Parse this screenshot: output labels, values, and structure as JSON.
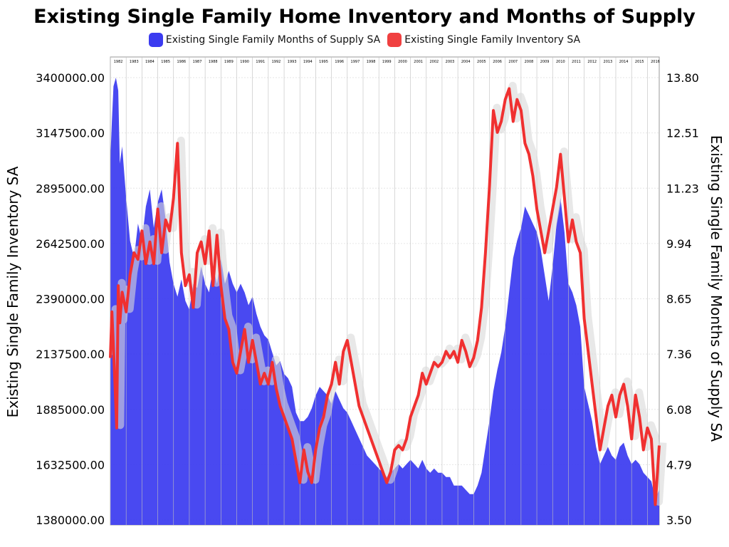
{
  "chart_data": {
    "type": "area+line",
    "title": "Existing Single Family Home Inventory and Months of Supply",
    "ylabel_left": "Existing Single Family Inventory SA",
    "ylabel_right": "Existing Single Family Months of Supply SA",
    "legend_position": "top-center",
    "grid": true,
    "y_left_ticks": [
      "3400000.00",
      "3147500.00",
      "2895000.00",
      "2642500.00",
      "2390000.00",
      "2137500.00",
      "1885000.00",
      "1632500.00",
      "1380000.00"
    ],
    "y_right_ticks": [
      "13.80",
      "12.51",
      "11.23",
      "9.94",
      "8.65",
      "7.36",
      "6.08",
      "4.79",
      "3.50"
    ],
    "y_left_range": [
      1380000,
      3400000
    ],
    "y_right_range": [
      3.5,
      13.8
    ],
    "x_range": [
      1982.0,
      2016.75
    ],
    "year_labels": [
      "1982",
      "1983",
      "1984",
      "1985",
      "1986",
      "1987",
      "1988",
      "1989",
      "1990",
      "1991",
      "1992",
      "1993",
      "1994",
      "1995",
      "1996",
      "1997",
      "1998",
      "1999",
      "2000",
      "2001",
      "2002",
      "2003",
      "2004",
      "2005",
      "2006",
      "2007",
      "2008",
      "2009",
      "2010",
      "2011",
      "2012",
      "2013",
      "2014",
      "2015",
      "2016"
    ],
    "series": [
      {
        "name": "Existing Single Family Months of Supply SA",
        "axis": "right",
        "render": "area",
        "color": "#3b3bf0",
        "points": [
          [
            1982.0,
            11.9
          ],
          [
            1982.1,
            12.8
          ],
          [
            1982.2,
            13.6
          ],
          [
            1982.35,
            13.8
          ],
          [
            1982.5,
            13.5
          ],
          [
            1982.6,
            11.8
          ],
          [
            1982.75,
            12.2
          ],
          [
            1983.0,
            11.0
          ],
          [
            1983.25,
            10.0
          ],
          [
            1983.5,
            9.6
          ],
          [
            1983.75,
            10.4
          ],
          [
            1984.0,
            10.0
          ],
          [
            1984.25,
            10.8
          ],
          [
            1984.5,
            11.2
          ],
          [
            1984.75,
            10.3
          ],
          [
            1985.0,
            10.9
          ],
          [
            1985.25,
            11.2
          ],
          [
            1985.5,
            10.5
          ],
          [
            1985.75,
            9.5
          ],
          [
            1986.0,
            9.0
          ],
          [
            1986.25,
            8.7
          ],
          [
            1986.5,
            9.1
          ],
          [
            1986.75,
            8.6
          ],
          [
            1987.0,
            8.4
          ],
          [
            1987.25,
            9.0
          ],
          [
            1987.5,
            8.9
          ],
          [
            1987.75,
            9.4
          ],
          [
            1988.0,
            9.0
          ],
          [
            1988.25,
            8.8
          ],
          [
            1988.5,
            9.4
          ],
          [
            1988.75,
            9.0
          ],
          [
            1989.0,
            9.6
          ],
          [
            1989.25,
            9.0
          ],
          [
            1989.5,
            9.3
          ],
          [
            1989.75,
            9.0
          ],
          [
            1990.0,
            8.8
          ],
          [
            1990.25,
            9.0
          ],
          [
            1990.5,
            8.8
          ],
          [
            1990.75,
            8.5
          ],
          [
            1991.0,
            8.7
          ],
          [
            1991.25,
            8.3
          ],
          [
            1991.5,
            8.0
          ],
          [
            1991.75,
            7.8
          ],
          [
            1992.0,
            7.7
          ],
          [
            1992.25,
            7.4
          ],
          [
            1992.5,
            7.1
          ],
          [
            1992.75,
            7.2
          ],
          [
            1993.0,
            6.9
          ],
          [
            1993.25,
            6.8
          ],
          [
            1993.5,
            6.6
          ],
          [
            1993.75,
            6.0
          ],
          [
            1994.0,
            5.8
          ],
          [
            1994.25,
            5.8
          ],
          [
            1994.5,
            5.9
          ],
          [
            1994.75,
            6.1
          ],
          [
            1995.0,
            6.4
          ],
          [
            1995.25,
            6.6
          ],
          [
            1995.5,
            6.5
          ],
          [
            1995.75,
            6.4
          ],
          [
            1996.0,
            6.2
          ],
          [
            1996.25,
            6.5
          ],
          [
            1996.5,
            6.3
          ],
          [
            1996.75,
            6.1
          ],
          [
            1997.0,
            6.0
          ],
          [
            1997.25,
            5.8
          ],
          [
            1997.5,
            5.6
          ],
          [
            1997.75,
            5.4
          ],
          [
            1998.0,
            5.2
          ],
          [
            1998.25,
            5.0
          ],
          [
            1998.5,
            4.9
          ],
          [
            1998.75,
            4.8
          ],
          [
            1999.0,
            4.7
          ],
          [
            1999.25,
            4.6
          ],
          [
            1999.5,
            4.5
          ],
          [
            1999.75,
            4.6
          ],
          [
            2000.0,
            4.7
          ],
          [
            2000.25,
            4.8
          ],
          [
            2000.5,
            4.7
          ],
          [
            2000.75,
            4.8
          ],
          [
            2001.0,
            4.9
          ],
          [
            2001.25,
            4.8
          ],
          [
            2001.5,
            4.7
          ],
          [
            2001.75,
            4.9
          ],
          [
            2002.0,
            4.7
          ],
          [
            2002.25,
            4.6
          ],
          [
            2002.5,
            4.7
          ],
          [
            2002.75,
            4.6
          ],
          [
            2003.0,
            4.6
          ],
          [
            2003.25,
            4.5
          ],
          [
            2003.5,
            4.5
          ],
          [
            2003.75,
            4.3
          ],
          [
            2004.0,
            4.3
          ],
          [
            2004.25,
            4.3
          ],
          [
            2004.5,
            4.2
          ],
          [
            2004.75,
            4.1
          ],
          [
            2005.0,
            4.1
          ],
          [
            2005.25,
            4.3
          ],
          [
            2005.5,
            4.6
          ],
          [
            2005.75,
            5.2
          ],
          [
            2006.0,
            5.8
          ],
          [
            2006.25,
            6.5
          ],
          [
            2006.5,
            7.0
          ],
          [
            2006.75,
            7.4
          ],
          [
            2007.0,
            8.0
          ],
          [
            2007.25,
            8.8
          ],
          [
            2007.5,
            9.6
          ],
          [
            2007.75,
            10.0
          ],
          [
            2008.0,
            10.3
          ],
          [
            2008.25,
            10.8
          ],
          [
            2008.5,
            10.6
          ],
          [
            2008.75,
            10.4
          ],
          [
            2009.0,
            10.2
          ],
          [
            2009.25,
            9.8
          ],
          [
            2009.5,
            9.2
          ],
          [
            2009.75,
            8.6
          ],
          [
            2010.0,
            9.4
          ],
          [
            2010.25,
            10.4
          ],
          [
            2010.5,
            11.0
          ],
          [
            2010.75,
            10.2
          ],
          [
            2011.0,
            9.0
          ],
          [
            2011.25,
            8.8
          ],
          [
            2011.5,
            8.5
          ],
          [
            2011.75,
            8.0
          ],
          [
            2012.0,
            6.6
          ],
          [
            2012.25,
            6.2
          ],
          [
            2012.5,
            5.8
          ],
          [
            2012.75,
            5.2
          ],
          [
            2013.0,
            4.8
          ],
          [
            2013.25,
            5.0
          ],
          [
            2013.5,
            5.2
          ],
          [
            2013.75,
            5.0
          ],
          [
            2014.0,
            4.9
          ],
          [
            2014.25,
            5.2
          ],
          [
            2014.5,
            5.3
          ],
          [
            2014.75,
            5.0
          ],
          [
            2015.0,
            4.8
          ],
          [
            2015.25,
            4.9
          ],
          [
            2015.5,
            4.8
          ],
          [
            2015.75,
            4.6
          ],
          [
            2016.0,
            4.5
          ],
          [
            2016.25,
            4.4
          ],
          [
            2016.5,
            4.0
          ],
          [
            2016.75,
            4.2
          ]
        ]
      },
      {
        "name": "Existing Single Family Inventory SA",
        "axis": "left",
        "render": "line",
        "color": "#f03030",
        "points": [
          [
            1982.0,
            2120000
          ],
          [
            1982.1,
            2330000
          ],
          [
            1982.25,
            2080000
          ],
          [
            1982.4,
            1800000
          ],
          [
            1982.5,
            2450000
          ],
          [
            1982.6,
            2280000
          ],
          [
            1982.75,
            2420000
          ],
          [
            1983.0,
            2330000
          ],
          [
            1983.25,
            2500000
          ],
          [
            1983.5,
            2600000
          ],
          [
            1983.75,
            2570000
          ],
          [
            1984.0,
            2700000
          ],
          [
            1984.25,
            2550000
          ],
          [
            1984.5,
            2650000
          ],
          [
            1984.75,
            2550000
          ],
          [
            1985.0,
            2800000
          ],
          [
            1985.25,
            2600000
          ],
          [
            1985.5,
            2750000
          ],
          [
            1985.75,
            2700000
          ],
          [
            1986.0,
            2850000
          ],
          [
            1986.25,
            3100000
          ],
          [
            1986.5,
            2600000
          ],
          [
            1986.75,
            2450000
          ],
          [
            1987.0,
            2500000
          ],
          [
            1987.25,
            2350000
          ],
          [
            1987.5,
            2600000
          ],
          [
            1987.75,
            2650000
          ],
          [
            1988.0,
            2550000
          ],
          [
            1988.25,
            2700000
          ],
          [
            1988.5,
            2450000
          ],
          [
            1988.75,
            2680000
          ],
          [
            1989.0,
            2450000
          ],
          [
            1989.25,
            2300000
          ],
          [
            1989.5,
            2250000
          ],
          [
            1989.75,
            2100000
          ],
          [
            1990.0,
            2050000
          ],
          [
            1990.25,
            2150000
          ],
          [
            1990.5,
            2250000
          ],
          [
            1990.75,
            2100000
          ],
          [
            1991.0,
            2200000
          ],
          [
            1991.25,
            2100000
          ],
          [
            1991.5,
            2000000
          ],
          [
            1991.75,
            2050000
          ],
          [
            1992.0,
            2000000
          ],
          [
            1992.25,
            2100000
          ],
          [
            1992.5,
            1980000
          ],
          [
            1992.75,
            1900000
          ],
          [
            1993.0,
            1850000
          ],
          [
            1993.25,
            1800000
          ],
          [
            1993.5,
            1750000
          ],
          [
            1993.75,
            1650000
          ],
          [
            1994.0,
            1550000
          ],
          [
            1994.25,
            1700000
          ],
          [
            1994.5,
            1600000
          ],
          [
            1994.75,
            1550000
          ],
          [
            1995.0,
            1700000
          ],
          [
            1995.25,
            1800000
          ],
          [
            1995.5,
            1850000
          ],
          [
            1995.75,
            1950000
          ],
          [
            1996.0,
            2000000
          ],
          [
            1996.25,
            2100000
          ],
          [
            1996.5,
            2000000
          ],
          [
            1996.75,
            2150000
          ],
          [
            1997.0,
            2200000
          ],
          [
            1997.25,
            2100000
          ],
          [
            1997.5,
            2000000
          ],
          [
            1997.75,
            1900000
          ],
          [
            1998.0,
            1850000
          ],
          [
            1998.25,
            1800000
          ],
          [
            1998.5,
            1750000
          ],
          [
            1998.75,
            1700000
          ],
          [
            1999.0,
            1650000
          ],
          [
            1999.25,
            1600000
          ],
          [
            1999.5,
            1550000
          ],
          [
            1999.75,
            1600000
          ],
          [
            2000.0,
            1700000
          ],
          [
            2000.25,
            1720000
          ],
          [
            2000.5,
            1700000
          ],
          [
            2000.75,
            1750000
          ],
          [
            2001.0,
            1850000
          ],
          [
            2001.25,
            1900000
          ],
          [
            2001.5,
            1950000
          ],
          [
            2001.75,
            2050000
          ],
          [
            2002.0,
            2000000
          ],
          [
            2002.25,
            2050000
          ],
          [
            2002.5,
            2100000
          ],
          [
            2002.75,
            2080000
          ],
          [
            2003.0,
            2100000
          ],
          [
            2003.25,
            2150000
          ],
          [
            2003.5,
            2120000
          ],
          [
            2003.75,
            2150000
          ],
          [
            2004.0,
            2100000
          ],
          [
            2004.25,
            2200000
          ],
          [
            2004.5,
            2150000
          ],
          [
            2004.75,
            2080000
          ],
          [
            2005.0,
            2120000
          ],
          [
            2005.25,
            2200000
          ],
          [
            2005.5,
            2350000
          ],
          [
            2005.75,
            2600000
          ],
          [
            2006.0,
            2900000
          ],
          [
            2006.25,
            3250000
          ],
          [
            2006.5,
            3150000
          ],
          [
            2006.75,
            3200000
          ],
          [
            2007.0,
            3300000
          ],
          [
            2007.25,
            3350000
          ],
          [
            2007.5,
            3200000
          ],
          [
            2007.75,
            3300000
          ],
          [
            2008.0,
            3250000
          ],
          [
            2008.25,
            3100000
          ],
          [
            2008.5,
            3050000
          ],
          [
            2008.75,
            2950000
          ],
          [
            2009.0,
            2800000
          ],
          [
            2009.25,
            2700000
          ],
          [
            2009.5,
            2600000
          ],
          [
            2009.75,
            2700000
          ],
          [
            2010.0,
            2800000
          ],
          [
            2010.25,
            2900000
          ],
          [
            2010.5,
            3050000
          ],
          [
            2010.75,
            2850000
          ],
          [
            2011.0,
            2650000
          ],
          [
            2011.25,
            2750000
          ],
          [
            2011.5,
            2650000
          ],
          [
            2011.75,
            2600000
          ],
          [
            2012.0,
            2300000
          ],
          [
            2012.25,
            2150000
          ],
          [
            2012.5,
            2000000
          ],
          [
            2012.75,
            1850000
          ],
          [
            2013.0,
            1700000
          ],
          [
            2013.25,
            1800000
          ],
          [
            2013.5,
            1900000
          ],
          [
            2013.75,
            1950000
          ],
          [
            2014.0,
            1850000
          ],
          [
            2014.25,
            1950000
          ],
          [
            2014.5,
            2000000
          ],
          [
            2014.75,
            1900000
          ],
          [
            2015.0,
            1750000
          ],
          [
            2015.25,
            1950000
          ],
          [
            2015.5,
            1850000
          ],
          [
            2015.75,
            1700000
          ],
          [
            2016.0,
            1800000
          ],
          [
            2016.25,
            1750000
          ],
          [
            2016.5,
            1450000
          ],
          [
            2016.75,
            1720000
          ]
        ]
      }
    ]
  }
}
